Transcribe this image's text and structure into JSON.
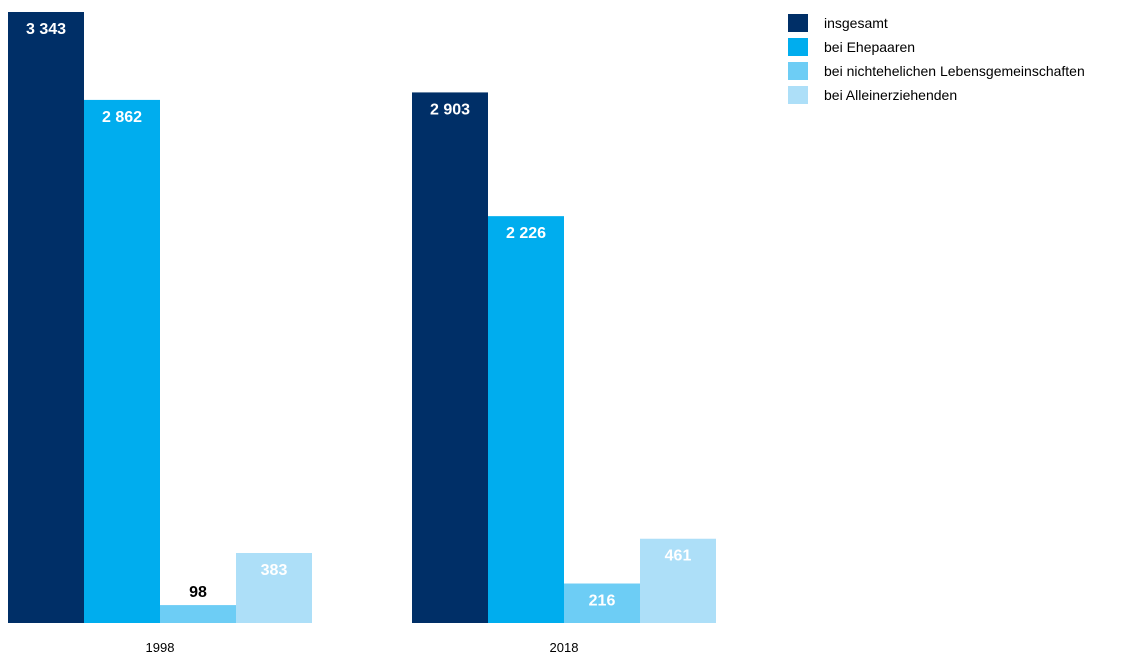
{
  "chart_data": {
    "type": "bar",
    "categories": [
      "1998",
      "2018"
    ],
    "series": [
      {
        "name": "insgesamt",
        "values": [
          3343,
          2903
        ],
        "labels": [
          "3 343",
          "2 903"
        ],
        "color": "#002f67",
        "label_color": "#ffffff"
      },
      {
        "name": "bei Ehepaaren",
        "values": [
          2862,
          2226
        ],
        "labels": [
          "2 862",
          "2 226"
        ],
        "color": "#00adee",
        "label_color": "#ffffff"
      },
      {
        "name": "bei nichtehelichen Lebensgemeinschaften",
        "values": [
          98,
          216
        ],
        "labels": [
          "98",
          "216"
        ],
        "color": "#6dcdf5",
        "label_colors": [
          "#000000",
          "#ffffff"
        ]
      },
      {
        "name": "bei Alleinerziehenden",
        "values": [
          383,
          461
        ],
        "labels": [
          "383",
          "461"
        ],
        "color": "#addff8",
        "label_color": "#ffffff"
      }
    ],
    "title": "",
    "xlabel": "",
    "ylabel": "",
    "ylim": [
      0,
      3343
    ],
    "grid": false,
    "legend_position": "top-right"
  }
}
